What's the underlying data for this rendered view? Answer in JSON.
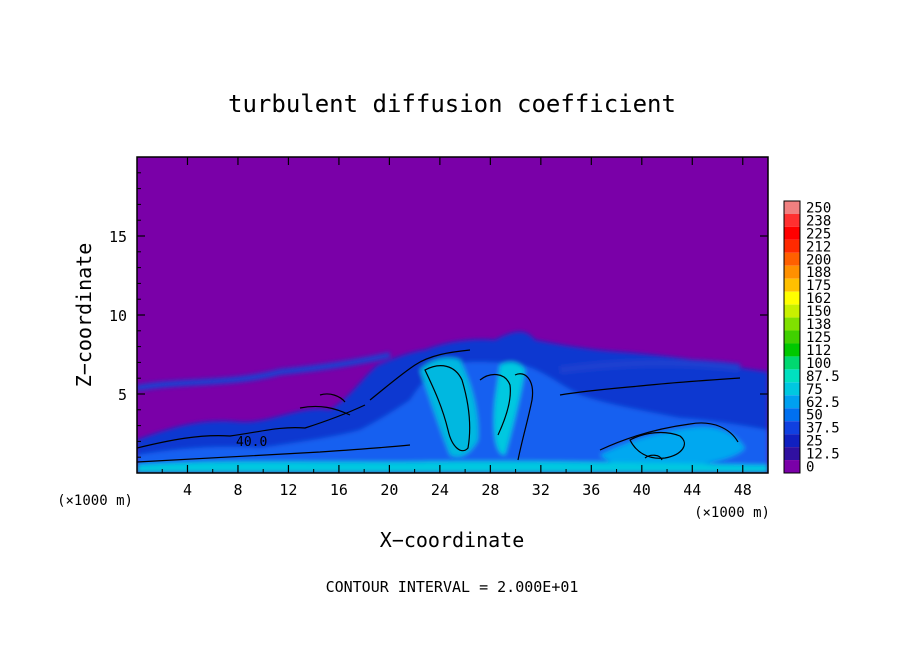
{
  "chart_data": {
    "type": "heatmap",
    "title": "turbulent diffusion coefficient",
    "xlabel": "X−coordinate",
    "ylabel": "Z−coordinate",
    "x_unit_left": "(×1000 m)",
    "x_unit_right": "(×1000 m)",
    "xlim": [
      0,
      50
    ],
    "ylim": [
      0,
      20
    ],
    "x_ticks": [
      "4",
      "8",
      "12",
      "16",
      "20",
      "24",
      "28",
      "32",
      "36",
      "40",
      "44",
      "48"
    ],
    "y_ticks": [
      "5",
      "10",
      "15"
    ],
    "colorbar_labels": [
      "250",
      "238",
      "225",
      "212",
      "200",
      "188",
      "175",
      "162",
      "150",
      "138",
      "125",
      "112",
      "100",
      "87.5",
      "75",
      "62.5",
      "50",
      "37.5",
      "25",
      "12.5",
      "0"
    ],
    "colorbar_colors": [
      "#f08080",
      "#ff3030",
      "#ff0000",
      "#ff2a00",
      "#ff6000",
      "#ff9000",
      "#ffc000",
      "#ffff00",
      "#c8f000",
      "#80e000",
      "#40d000",
      "#00c800",
      "#00d870",
      "#00e0c0",
      "#00c8e0",
      "#00a0f0",
      "#0070f0",
      "#1040e0",
      "#1020c0",
      "#3010a0",
      "#7a00a8"
    ],
    "contour_label": "40.0",
    "footer": "CONTOUR INTERVAL = 2.000E+01"
  }
}
